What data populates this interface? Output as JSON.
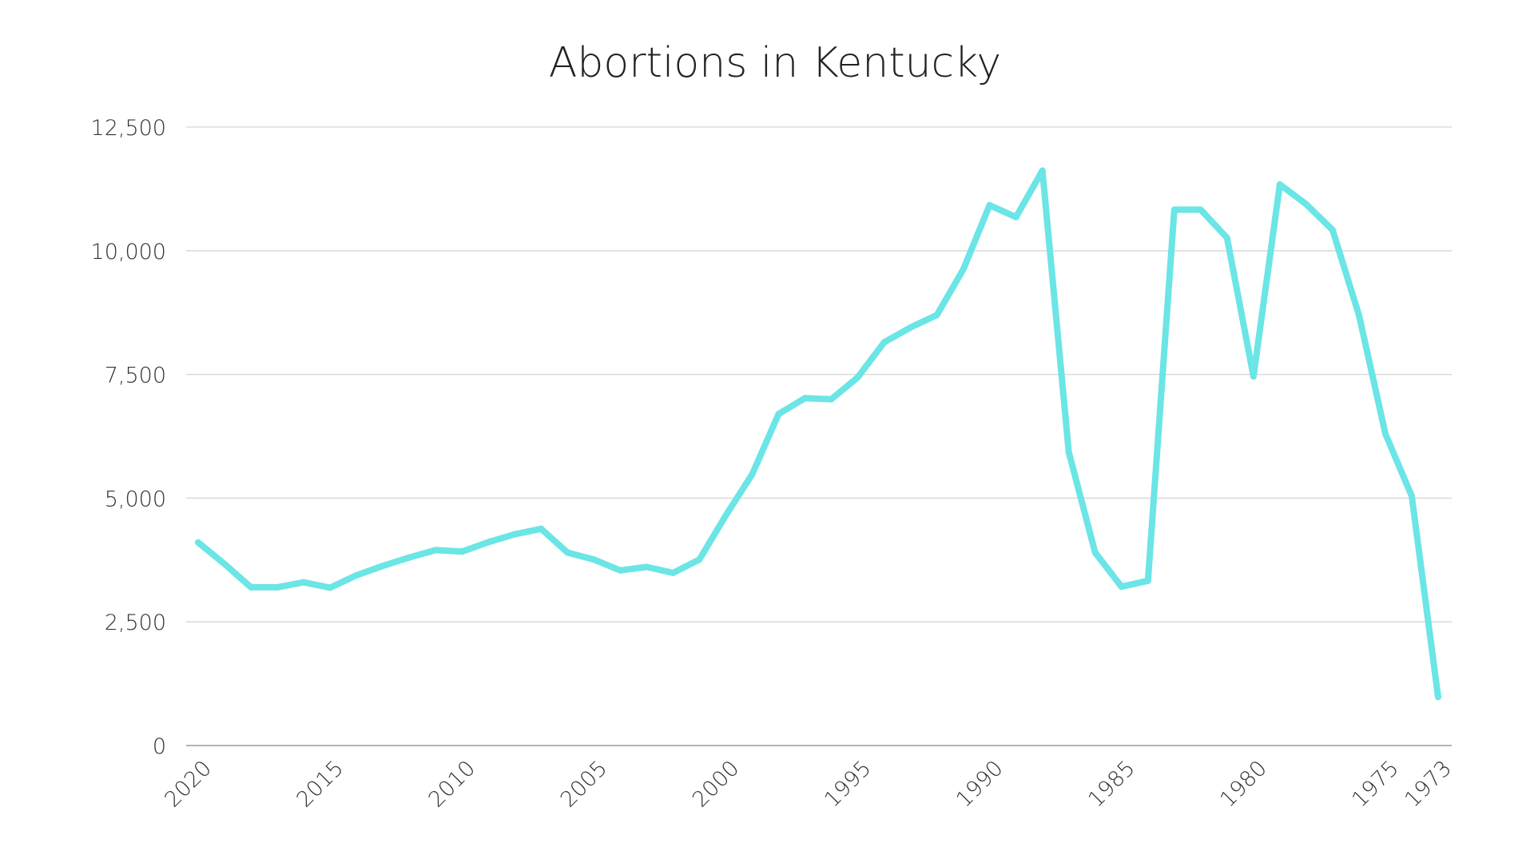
{
  "chart_data": {
    "type": "line",
    "title": "Abortions in Kentucky",
    "xlabel": "",
    "ylabel": "",
    "x": [
      2020,
      2019,
      2018,
      2017,
      2016,
      2015,
      2014,
      2013,
      2012,
      2011,
      2010,
      2009,
      2008,
      2007,
      2006,
      2005,
      2004,
      2003,
      2002,
      2001,
      2000,
      1999,
      1998,
      1997,
      1996,
      1995,
      1994,
      1993,
      1992,
      1991,
      1990,
      1989,
      1988,
      1987,
      1986,
      1985,
      1984,
      1983,
      1982,
      1981,
      1980,
      1979,
      1978,
      1977,
      1976,
      1975,
      1974,
      1973
    ],
    "series": [
      {
        "color": "#6be5e5",
        "values": [
          4105,
          3670,
          3200,
          3200,
          3300,
          3190,
          3440,
          3630,
          3800,
          3950,
          3920,
          4110,
          4270,
          4380,
          3900,
          3760,
          3540,
          3610,
          3490,
          3760,
          4650,
          5480,
          6700,
          7020,
          7000,
          7440,
          8150,
          8450,
          8700,
          9620,
          10920,
          10680,
          11620,
          5930,
          3900,
          3210,
          3330,
          10830,
          10830,
          10260,
          7460,
          11340,
          10940,
          10420,
          8700,
          6300,
          5040,
          980
        ]
      }
    ],
    "ylim": [
      0,
      12500
    ],
    "yticks": [
      0,
      2500,
      5000,
      7500,
      10000,
      12500
    ],
    "ytick_labels": [
      "0",
      "2,500",
      "5,000",
      "7,500",
      "10,000",
      "12,500"
    ],
    "xticks": [
      2020,
      2015,
      2010,
      2005,
      2000,
      1995,
      1990,
      1985,
      1980,
      1975,
      1973
    ],
    "xtick_labels": [
      "2020",
      "2015",
      "2010",
      "2005",
      "2000",
      "1995",
      "1990",
      "1985",
      "1980",
      "1975",
      "1973"
    ],
    "x_direction": "descending",
    "grid": true,
    "legend": "none"
  }
}
